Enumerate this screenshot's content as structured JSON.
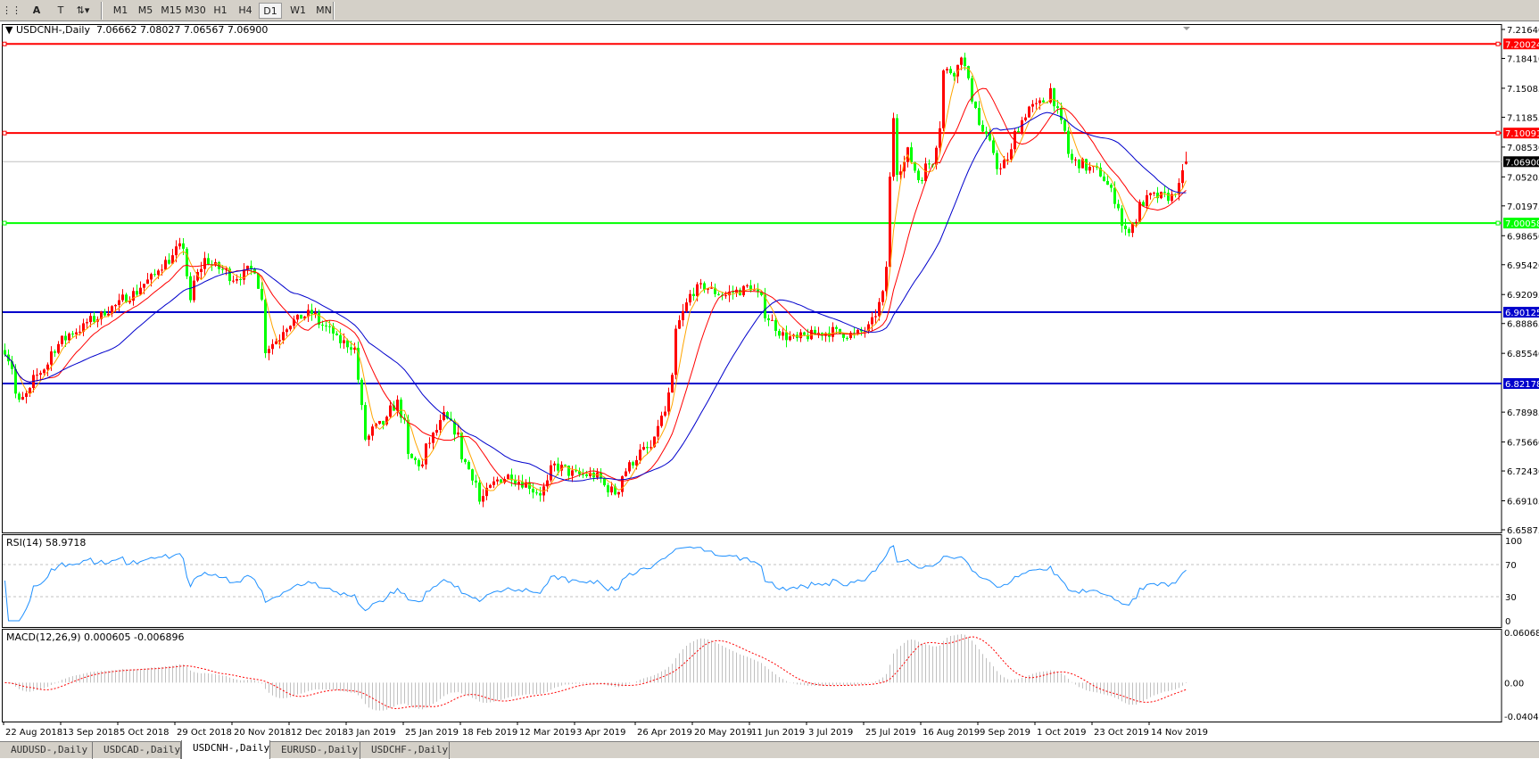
{
  "toolbar": {
    "tools": [
      {
        "icon": "period-separator-icon"
      },
      {
        "icon": "text-icon",
        "label": "A"
      },
      {
        "icon": "text-label-icon",
        "label": "T"
      },
      {
        "icon": "arrows-icon"
      }
    ],
    "timeframes": [
      "M1",
      "M5",
      "M15",
      "M30",
      "H1",
      "H4",
      "D1",
      "W1",
      "MN"
    ],
    "active_timeframe": "D1"
  },
  "header": {
    "symbol": "USDCNH-,Daily",
    "ohlc": "7.06662 7.08027 7.06567 7.06900"
  },
  "price_axis": {
    "ticks": [
      "7.21640",
      "7.18410",
      "7.15085",
      "7.11855",
      "7.08530",
      "7.05205",
      "7.01975",
      "6.98650",
      "6.95420",
      "6.92095",
      "6.88865",
      "6.85540",
      "6.78985",
      "6.75660",
      "6.72430",
      "6.69105",
      "6.65875"
    ],
    "range": [
      6.65875,
      7.2164
    ]
  },
  "levels": [
    {
      "value": "7.20024",
      "color": "#ff0000"
    },
    {
      "value": "7.10091",
      "color": "#ff0000"
    },
    {
      "value": "7.06900",
      "color": "#000000",
      "line": "#c0c0c0"
    },
    {
      "value": "7.00058",
      "color": "#00ff00"
    },
    {
      "value": "6.90125",
      "color": "#0000cc"
    },
    {
      "value": "6.82178",
      "color": "#0000cc"
    }
  ],
  "colors": {
    "up": "#ff0000",
    "down": "#00ff00",
    "ma_fast": "#ffa500",
    "ma_mid": "#ff0000",
    "ma_slow": "#0000cc",
    "rsi": "#1e90ff",
    "macd_hist": "#c0c0c0",
    "macd_signal": "#ff0000"
  },
  "rsi": {
    "label": "RSI(14) 58.9718",
    "ticks": [
      "100",
      "70",
      "30",
      "0"
    ]
  },
  "macd": {
    "label": "MACD(12,26,9) 0.000605 -0.006896",
    "ticks": [
      "0.060687",
      "0.00",
      "-0.04043"
    ]
  },
  "time_axis": {
    "ticks": [
      "22 Aug 2018",
      "13 Sep 2018",
      "5 Oct 2018",
      "29 Oct 2018",
      "20 Nov 2018",
      "12 Dec 2018",
      "3 Jan 2019",
      "25 Jan 2019",
      "18 Feb 2019",
      "12 Mar 2019",
      "3 Apr 2019",
      "26 Apr 2019",
      "20 May 2019",
      "11 Jun 2019",
      "3 Jul 2019",
      "25 Jul 2019",
      "16 Aug 2019",
      "9 Sep 2019",
      "1 Oct 2019",
      "23 Oct 2019",
      "14 Nov 2019"
    ]
  },
  "tabs": [
    {
      "label": "AUDUSD-,Daily"
    },
    {
      "label": "USDCAD-,Daily"
    },
    {
      "label": "USDCNH-,Daily",
      "active": true
    },
    {
      "label": "EURUSD-,Daily"
    },
    {
      "label": "USDCHF-,Daily"
    }
  ],
  "chart_data": {
    "type": "candlestick",
    "symbol": "USDCNH-",
    "timeframe": "Daily",
    "last_bar": {
      "open": 7.06662,
      "high": 7.08027,
      "low": 7.06567,
      "close": 7.069
    },
    "approx_close_path": [
      [
        "2018-08-22",
        6.86
      ],
      [
        "2018-08-28",
        6.8
      ],
      [
        "2018-09-13",
        6.87
      ],
      [
        "2018-10-05",
        6.91
      ],
      [
        "2018-10-15",
        6.93
      ],
      [
        "2018-10-25",
        6.96
      ],
      [
        "2018-10-31",
        6.975
      ],
      [
        "2018-11-02",
        6.91
      ],
      [
        "2018-11-08",
        6.96
      ],
      [
        "2018-11-20",
        6.94
      ],
      [
        "2018-11-28",
        6.95
      ],
      [
        "2018-12-03",
        6.86
      ],
      [
        "2018-12-12",
        6.89
      ],
      [
        "2018-12-20",
        6.9
      ],
      [
        "2018-12-31",
        6.87
      ],
      [
        "2019-01-07",
        6.86
      ],
      [
        "2019-01-10",
        6.76
      ],
      [
        "2019-01-18",
        6.78
      ],
      [
        "2019-01-23",
        6.8
      ],
      [
        "2019-01-28",
        6.74
      ],
      [
        "2019-02-01",
        6.73
      ],
      [
        "2019-02-10",
        6.79
      ],
      [
        "2019-02-14",
        6.77
      ],
      [
        "2019-02-25",
        6.69
      ],
      [
        "2019-03-01",
        6.71
      ],
      [
        "2019-03-08",
        6.72
      ],
      [
        "2019-03-20",
        6.7
      ],
      [
        "2019-03-26",
        6.73
      ],
      [
        "2019-04-03",
        6.72
      ],
      [
        "2019-04-10",
        6.72
      ],
      [
        "2019-04-18",
        6.7
      ],
      [
        "2019-04-26",
        6.74
      ],
      [
        "2019-05-02",
        6.75
      ],
      [
        "2019-05-08",
        6.79
      ],
      [
        "2019-05-13",
        6.88
      ],
      [
        "2019-05-17",
        6.92
      ],
      [
        "2019-05-23",
        6.93
      ],
      [
        "2019-05-31",
        6.92
      ],
      [
        "2019-06-11",
        6.93
      ],
      [
        "2019-06-17",
        6.9
      ],
      [
        "2019-06-21",
        6.88
      ],
      [
        "2019-06-28",
        6.87
      ],
      [
        "2019-07-03",
        6.875
      ],
      [
        "2019-07-12",
        6.88
      ],
      [
        "2019-07-22",
        6.875
      ],
      [
        "2019-07-29",
        6.89
      ],
      [
        "2019-08-01",
        6.92
      ],
      [
        "2019-08-05",
        7.05
      ],
      [
        "2019-08-06",
        7.12
      ],
      [
        "2019-08-07",
        7.06
      ],
      [
        "2019-08-12",
        7.08
      ],
      [
        "2019-08-15",
        7.05
      ],
      [
        "2019-08-21",
        7.07
      ],
      [
        "2019-08-26",
        7.17
      ],
      [
        "2019-08-29",
        7.17
      ],
      [
        "2019-09-02",
        7.19
      ],
      [
        "2019-09-05",
        7.14
      ],
      [
        "2019-09-09",
        7.11
      ],
      [
        "2019-09-13",
        7.08
      ],
      [
        "2019-09-17",
        7.06
      ],
      [
        "2019-09-23",
        7.1
      ],
      [
        "2019-09-27",
        7.13
      ],
      [
        "2019-10-01",
        7.13
      ],
      [
        "2019-10-07",
        7.15
      ],
      [
        "2019-10-10",
        7.11
      ],
      [
        "2019-10-15",
        7.07
      ],
      [
        "2019-10-23",
        7.06
      ],
      [
        "2019-10-28",
        7.05
      ],
      [
        "2019-11-01",
        7.02
      ],
      [
        "2019-11-05",
        6.99
      ],
      [
        "2019-11-07",
        7.0
      ],
      [
        "2019-11-11",
        7.02
      ],
      [
        "2019-11-14",
        7.03
      ],
      [
        "2019-11-22",
        7.03
      ],
      [
        "2019-11-26",
        7.04
      ],
      [
        "2019-11-28",
        7.069
      ]
    ]
  }
}
